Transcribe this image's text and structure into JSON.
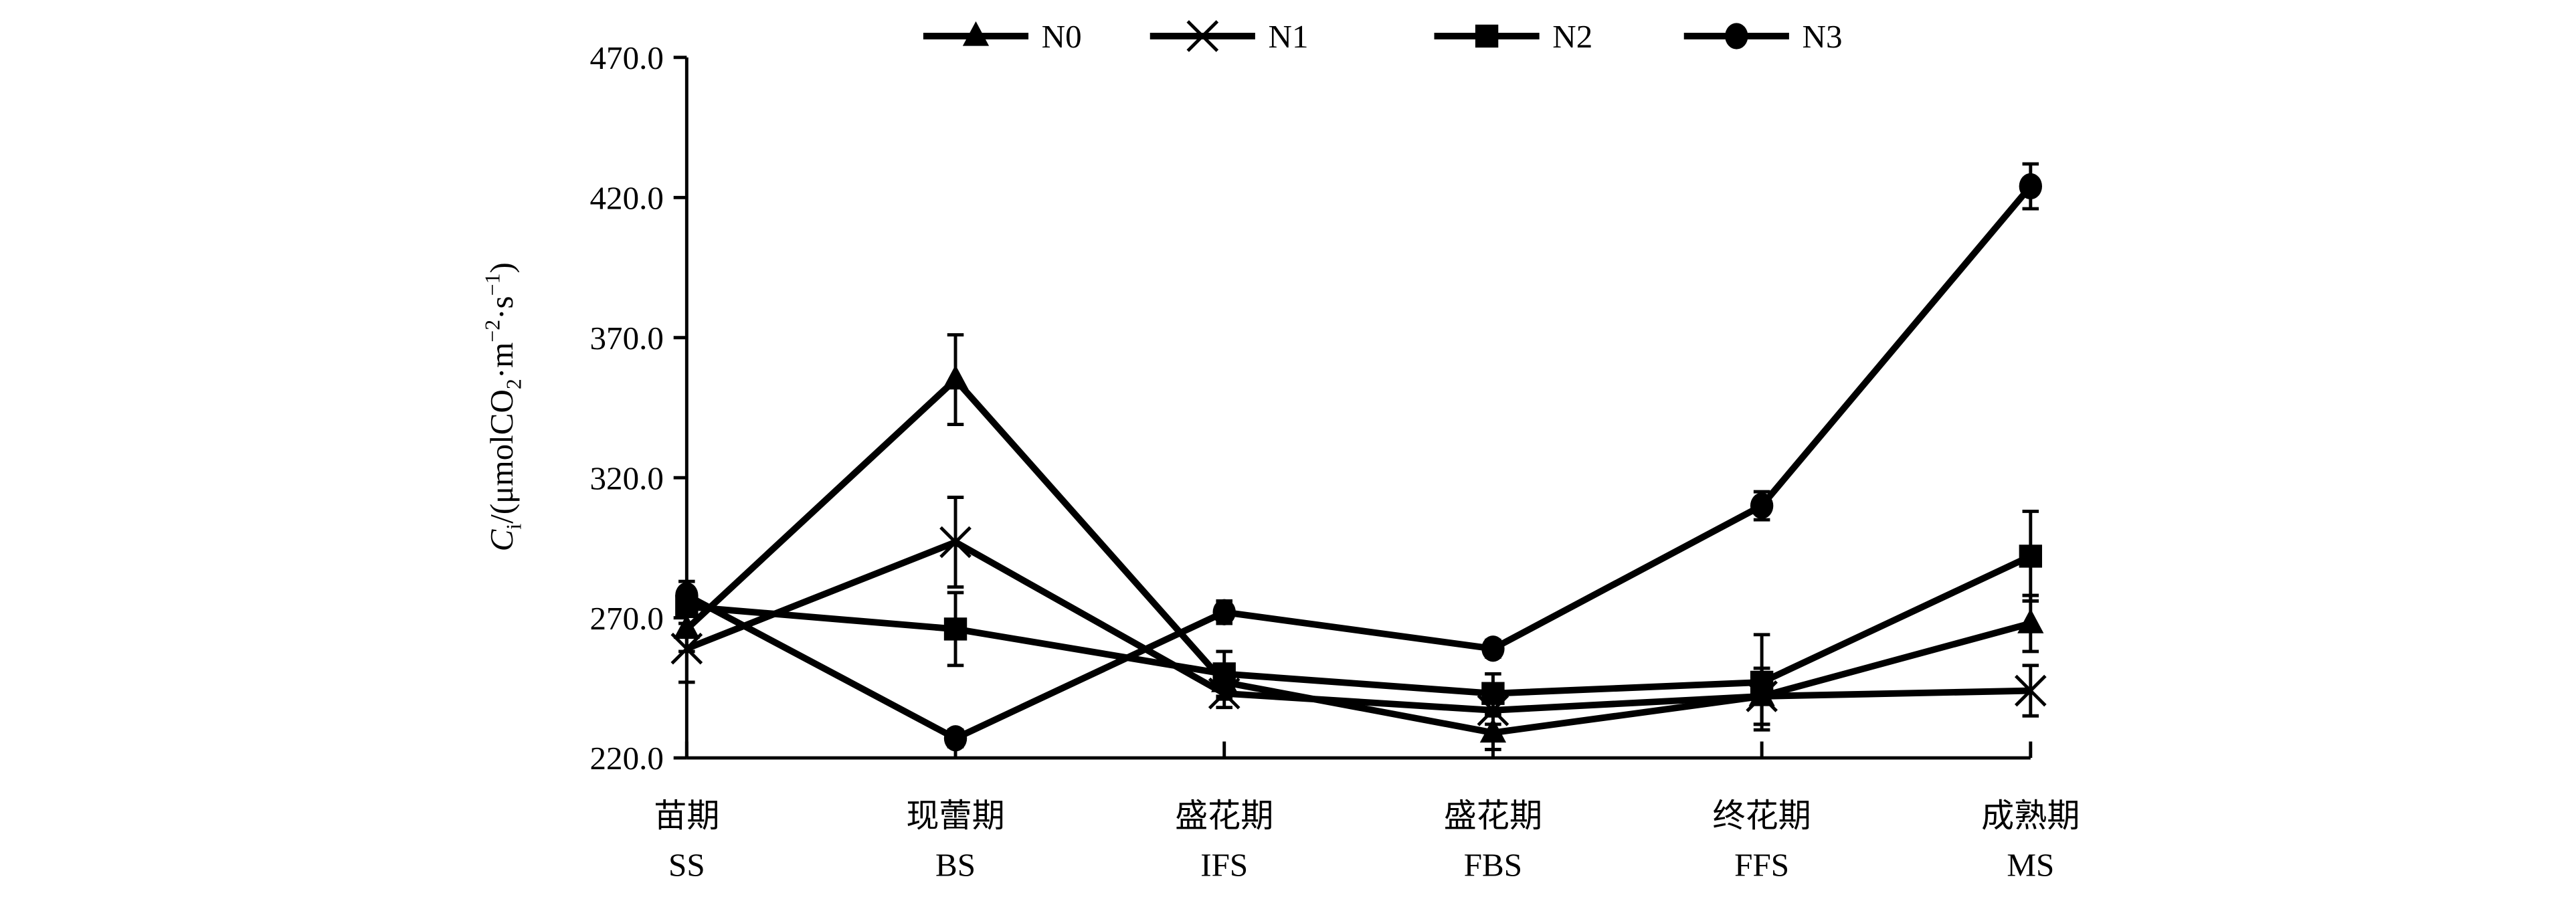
{
  "chart_data": {
    "type": "line",
    "title": "",
    "ylabel": "Ci /(μmolCO2·m-2·s-1)",
    "ylabel_parts": {
      "var": "C",
      "sub": "i",
      "unit_a": "/(μmolCO",
      "sub2": "2",
      "unit_b": "·m",
      "sup1": "−2",
      "unit_c": "·s",
      "sup2": "−1",
      "unit_d": ")"
    },
    "xlabel": "",
    "categories": [
      {
        "cn": "苗期",
        "en": "SS"
      },
      {
        "cn": "现蕾期",
        "en": "BS"
      },
      {
        "cn": "盛花期",
        "en": "IFS"
      },
      {
        "cn": "盛花期",
        "en": "FBS"
      },
      {
        "cn": "终花期",
        "en": "FFS"
      },
      {
        "cn": "成熟期",
        "en": "MS"
      }
    ],
    "ylim": [
      220,
      470
    ],
    "yticks": [
      "220.0",
      "270.0",
      "320.0",
      "370.0",
      "420.0",
      "470.0"
    ],
    "grid": false,
    "legend_position": "top-center",
    "series": [
      {
        "name": "N0",
        "marker": "triangle",
        "values": [
          266,
          355,
          247,
          229,
          242,
          268
        ],
        "errors": [
          8,
          16,
          6,
          6,
          10,
          10
        ]
      },
      {
        "name": "N1",
        "marker": "cross",
        "values": [
          259,
          297,
          243,
          237,
          242,
          244
        ],
        "errors": [
          12,
          16,
          5,
          5,
          10,
          9
        ]
      },
      {
        "name": "N2",
        "marker": "square",
        "values": [
          274,
          266,
          250,
          243,
          247,
          292
        ],
        "errors": [
          6,
          13,
          8,
          7,
          17,
          16
        ]
      },
      {
        "name": "N3",
        "marker": "circle",
        "values": [
          278,
          227,
          272,
          259,
          310,
          424
        ],
        "errors": [
          5,
          3,
          4,
          3,
          5,
          8
        ]
      }
    ]
  }
}
